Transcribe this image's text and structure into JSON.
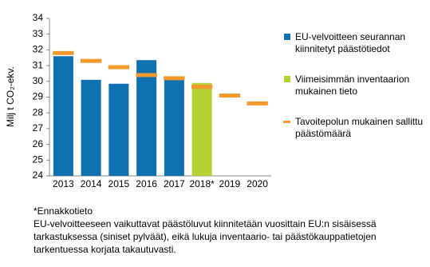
{
  "chart_data": {
    "type": "bar",
    "categories": [
      "2013",
      "2014",
      "2015",
      "2016",
      "2017",
      "2018*",
      "2019",
      "2020"
    ],
    "y_label": "Milj t CO₂-ekv.",
    "ylim": [
      24,
      34
    ],
    "yticks": [
      24,
      25,
      26,
      27,
      28,
      29,
      30,
      31,
      32,
      33,
      34
    ],
    "series": [
      {
        "name": "EU-velvoitteen seurannan kiinnitetyt päästötiedot",
        "color": "#0f71b0",
        "kind": "bar",
        "values": [
          31.6,
          30.1,
          29.85,
          31.35,
          30.1,
          null,
          null,
          null
        ]
      },
      {
        "name": "Viimeisimmän inventaarion mukainen tieto",
        "color": "#b3d235",
        "kind": "bar",
        "values": [
          null,
          null,
          null,
          null,
          null,
          29.9,
          null,
          null
        ]
      },
      {
        "name": "Tavoitepolun mukainen sallittu päästömäärä",
        "color": "#f39a2e",
        "kind": "dash",
        "values": [
          31.8,
          31.3,
          30.9,
          30.4,
          30.2,
          29.65,
          29.1,
          28.6
        ]
      }
    ],
    "footnotes": [
      "*Ennakkotieto",
      "EU-velvoitteeseen vaikuttavat päästöluvut kiinnitetään vuosittain EU:n sisäisessä",
      "tarkastuksessa (siniset pylväät), eikä lukuja inventaario- tai päästökauppatietojen",
      "tarkentuessa korjata takautuvasti."
    ]
  }
}
